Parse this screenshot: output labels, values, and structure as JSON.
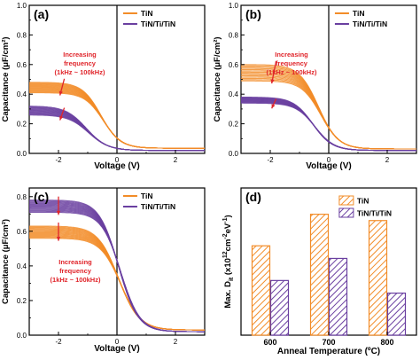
{
  "colors": {
    "tin": "#F28C28",
    "tintitin": "#6A3FA0",
    "annotation": "#E0252B",
    "axis": "#000000"
  },
  "chart_data": [
    {
      "panel": "(a)",
      "type": "line",
      "xlabel": "Voltage (V)",
      "ylabel": "Capacitance (μF/cm²)",
      "xlim": [
        -3,
        3
      ],
      "ylim": [
        0,
        1.0
      ],
      "xticks": [
        "-2",
        "0",
        "2"
      ],
      "yticks": [
        "0.0",
        "0.2",
        "0.4",
        "0.6",
        "0.8",
        "1.0"
      ],
      "legend": {
        "placement": "top-right",
        "entries": [
          "TiN",
          "TiN/Ti/TiN"
        ]
      },
      "annotation": {
        "lines": [
          "Increasing",
          "frequency",
          "(1kHz ~ 100kHz)"
        ]
      },
      "series": [
        {
          "name": "TiN",
          "color_key": "tin",
          "accum_high": 0.48,
          "accum_low": 0.41,
          "depl": 0.035,
          "v0": -0.55,
          "w": 0.32
        },
        {
          "name": "TiN/Ti/TiN",
          "color_key": "tintitin",
          "accum_high": 0.32,
          "accum_low": 0.26,
          "depl": 0.02,
          "v0": -1.05,
          "w": 0.35
        }
      ]
    },
    {
      "panel": "(b)",
      "type": "line",
      "xlabel": "Voltage (V)",
      "ylabel": "Capacitance (μF/cm²)",
      "xlim": [
        -3,
        3
      ],
      "ylim": [
        0,
        1.0
      ],
      "xticks": [
        "-2",
        "0",
        "2"
      ],
      "yticks": [
        "0.0",
        "0.2",
        "0.4",
        "0.6",
        "0.8",
        "1.0"
      ],
      "legend": {
        "placement": "top-right",
        "entries": [
          "TiN",
          "TiN/Ti/TiN"
        ]
      },
      "annotation": {
        "lines": [
          "Increasing",
          "frequency",
          "(1kHz ~ 100kHz)"
        ]
      },
      "series": [
        {
          "name": "TiN",
          "color_key": "tin",
          "accum_high": 0.6,
          "accum_low": 0.49,
          "depl": 0.03,
          "v0": -0.35,
          "w": 0.33
        },
        {
          "name": "TiN/Ti/TiN",
          "color_key": "tintitin",
          "accum_high": 0.38,
          "accum_low": 0.34,
          "depl": 0.02,
          "v0": -0.55,
          "w": 0.33
        }
      ]
    },
    {
      "panel": "(c)",
      "type": "line",
      "xlabel": "Voltage (V)",
      "ylabel": "Capacitance (μF/cm²)",
      "xlim": [
        -3,
        3
      ],
      "ylim": [
        0,
        0.85
      ],
      "xticks": [
        "-2",
        "0",
        "2"
      ],
      "yticks": [
        "0.0",
        "0.2",
        "0.4",
        "0.6",
        "0.8"
      ],
      "legend": {
        "placement": "top-right",
        "entries": [
          "TiN",
          "TiN/Ti/TiN"
        ]
      },
      "annotation": {
        "lines": [
          "Increasing",
          "frequency",
          "(1kHz ~ 100kHz)"
        ]
      },
      "series": [
        {
          "name": "TiN",
          "color_key": "tin",
          "accum_high": 0.63,
          "accum_low": 0.56,
          "depl": 0.03,
          "v0": 0.05,
          "w": 0.35
        },
        {
          "name": "TiN/Ti/TiN",
          "color_key": "tintitin",
          "accum_high": 0.78,
          "accum_low": 0.71,
          "depl": 0.02,
          "v0": 0.05,
          "w": 0.33
        }
      ]
    },
    {
      "panel": "(d)",
      "type": "bar",
      "xlabel": "Anneal Temperature (ºC)",
      "ylabel": "Max. D",
      "ylabel_sub": "it",
      "ylabel_rest": " (x10",
      "ylabel_sup1": "12",
      "ylabel_mid": "cm",
      "ylabel_sup2": "-2",
      "ylabel_end": "eV",
      "ylabel_sup3": "-1",
      "ylabel_close": ")",
      "categories": [
        "600",
        "700",
        "800"
      ],
      "ylim": [
        0,
        7
      ],
      "legend": {
        "placement": "top-right",
        "entries": [
          "TiN",
          "TiN/Ti/TiN"
        ]
      },
      "series": [
        {
          "name": "TiN",
          "color_key": "tin",
          "values": [
            4.25,
            5.75,
            5.45
          ]
        },
        {
          "name": "TiN/Ti/TiN",
          "color_key": "tintitin",
          "values": [
            2.6,
            3.65,
            2.0
          ]
        }
      ]
    }
  ]
}
